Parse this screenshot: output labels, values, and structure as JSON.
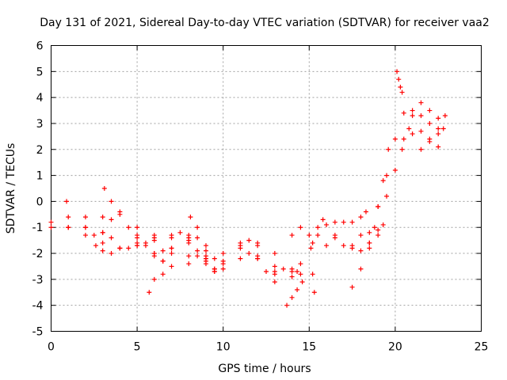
{
  "chart_data": {
    "type": "scatter",
    "title": "Day 131 of 2021, Sidereal Day-to-day VTEC variation (SDTVAR) for receiver vaa2",
    "xlabel": "GPS time / hours",
    "ylabel": "SDTVAR / TECUs",
    "xlim": [
      0,
      25
    ],
    "ylim": [
      -5,
      6
    ],
    "xticks": [
      "0",
      "5",
      "10",
      "15",
      "20",
      "25"
    ],
    "yticks": [
      "-5",
      "-4",
      "-3",
      "-2",
      "-1",
      "0",
      "1",
      "2",
      "3",
      "4",
      "5",
      "6"
    ],
    "grid": true,
    "marker": "plus",
    "color": "#ff0000",
    "tracks": [
      {
        "x": [
          0.0,
          1.0,
          2.0,
          3.0,
          3.5
        ],
        "y": [
          -0.8,
          -1.0,
          -1.0,
          -0.6,
          -0.7
        ]
      },
      {
        "x": [
          0.0,
          1.0,
          2.0,
          3.0,
          4.0,
          5.0,
          6.0,
          7.0,
          7.5,
          8.0,
          9.0,
          9.5,
          10.0,
          11.0,
          12.0,
          13.0,
          14.0,
          14.5
        ],
        "y": [
          -1.0,
          -1.0,
          -1.3,
          -1.6,
          -1.8,
          -1.7,
          -1.4,
          -1.3,
          -1.2,
          -1.6,
          -2.2,
          -2.7,
          -2.3,
          -1.7,
          -1.6,
          -2.0,
          -2.6,
          -2.4
        ]
      },
      {
        "x": [
          0.9,
          2.0,
          3.0,
          3.5,
          4.5,
          5.0,
          6.0,
          6.5,
          7.0,
          8.0,
          9.0,
          9.5,
          10.0,
          11.0,
          12.0,
          13.0,
          14.0,
          14.5
        ],
        "y": [
          0.0,
          -0.6,
          -1.2,
          -1.4,
          -1.8,
          -1.6,
          -2.1,
          -2.3,
          -2.0,
          -2.1,
          -2.3,
          -2.6,
          -2.0,
          -1.6,
          -2.2,
          -2.8,
          -2.7,
          -2.8
        ]
      },
      {
        "x": [
          1.0,
          2.0,
          2.5,
          3.0,
          4.0,
          5.0,
          6.0,
          6.5,
          7.0,
          8.0,
          9.0
        ],
        "y": [
          -0.6,
          -1.0,
          -1.3,
          -1.2,
          -1.8,
          -1.7,
          -2.0,
          -2.3,
          -1.8,
          -1.5,
          -1.9
        ]
      },
      {
        "x": [
          3.1,
          3.5,
          4.0,
          4.5,
          5.0,
          5.5,
          6.0,
          6.5
        ],
        "y": [
          0.5,
          0.0,
          -0.5,
          -1.0,
          -1.3,
          -1.6,
          -1.5,
          -1.9
        ]
      },
      {
        "x": [
          2.6,
          3.0,
          3.5,
          4.0,
          5.0,
          5.5,
          6.0,
          7.0,
          8.0,
          8.5,
          9.0,
          9.5
        ],
        "y": [
          -1.7,
          -1.9,
          -2.0,
          -1.8,
          -1.4,
          -1.7,
          -2.0,
          -1.4,
          -1.4,
          -1.9,
          -2.4,
          -2.6
        ]
      },
      {
        "x": [
          4.0,
          5.0,
          6.0,
          7.0,
          8.0,
          8.5,
          9.0,
          10.0,
          11.0,
          12.0,
          13.0,
          14.0,
          14.5
        ],
        "y": [
          -0.4,
          -1.0,
          -1.3,
          -1.8,
          -1.3,
          -1.4,
          -2.1,
          -2.4,
          -1.8,
          -1.7,
          -2.5,
          -1.3,
          -1.0
        ]
      },
      {
        "x": [
          5.7,
          6.0,
          6.5,
          7.0,
          8.0,
          8.5,
          9.0,
          9.5
        ],
        "y": [
          -3.5,
          -3.0,
          -2.8,
          -2.5,
          -2.4,
          -2.1,
          -2.2,
          -2.7
        ]
      },
      {
        "x": [
          8.1,
          8.5,
          9.0,
          9.5,
          10.0,
          11.0,
          11.5,
          12.0,
          12.5,
          13.0
        ],
        "y": [
          -0.6,
          -1.0,
          -1.7,
          -2.2,
          -2.6,
          -2.2,
          -2.0,
          -2.1,
          -2.7,
          -3.1
        ]
      },
      {
        "x": [
          11.5,
          12.0,
          13.0,
          13.5,
          14.0,
          14.3
        ],
        "y": [
          -1.5,
          -2.2,
          -2.7,
          -2.6,
          -2.9,
          -2.7
        ]
      },
      {
        "x": [
          13.7,
          14.0,
          14.3,
          14.6
        ],
        "y": [
          -4.0,
          -3.7,
          -3.4,
          -3.1
        ]
      },
      {
        "x": [
          15.0,
          15.1,
          15.2,
          15.3
        ],
        "y": [
          -1.3,
          -1.8,
          -2.8,
          -3.5
        ]
      },
      {
        "x": [
          15.2,
          15.5,
          16.0,
          16.5,
          17.0,
          17.5,
          18.0,
          18.5,
          19.0,
          19.5,
          20.0,
          20.5,
          21.0,
          21.5,
          22.0,
          22.5
        ],
        "y": [
          -1.6,
          -1.3,
          -1.7,
          -1.4,
          -1.7,
          -1.8,
          -1.3,
          -1.2,
          -0.2,
          1.0,
          2.4,
          3.4,
          3.5,
          3.3,
          3.0,
          2.8
        ]
      },
      {
        "x": [
          15.5,
          16.0,
          16.5,
          17.0,
          17.5,
          18.0,
          18.3
        ],
        "y": [
          -1.0,
          -0.9,
          -0.8,
          -0.8,
          -0.8,
          -0.6,
          -0.4
        ]
      },
      {
        "x": [
          15.8,
          16.5,
          17.5,
          18.0,
          18.5,
          19.0,
          19.5,
          20.0,
          20.5,
          21.0,
          21.5,
          22.0,
          22.5
        ],
        "y": [
          -0.7,
          -1.3,
          -1.7,
          -1.9,
          -1.6,
          -1.1,
          0.2,
          1.2,
          2.4,
          3.3,
          3.8,
          3.5,
          3.2
        ]
      },
      {
        "x": [
          17.5,
          18.0,
          18.5,
          19.0,
          19.3
        ],
        "y": [
          -3.3,
          -2.6,
          -1.8,
          -1.3,
          -0.9
        ]
      },
      {
        "x": [
          18.5,
          18.8,
          19.0,
          19.3,
          19.6
        ],
        "y": [
          -1.6,
          -1.0,
          -0.2,
          0.8,
          2.0
        ]
      },
      {
        "x": [
          20.1,
          20.2,
          20.3,
          20.4
        ],
        "y": [
          5.0,
          4.7,
          4.4,
          4.2
        ]
      },
      {
        "x": [
          20.4,
          20.8,
          21.0,
          21.5,
          22.0,
          22.5,
          22.8
        ],
        "y": [
          2.0,
          2.8,
          2.6,
          2.7,
          2.4,
          2.1,
          2.8
        ]
      },
      {
        "x": [
          21.5,
          22.0,
          22.5,
          22.9
        ],
        "y": [
          2.0,
          2.3,
          2.6,
          3.3
        ]
      }
    ]
  }
}
